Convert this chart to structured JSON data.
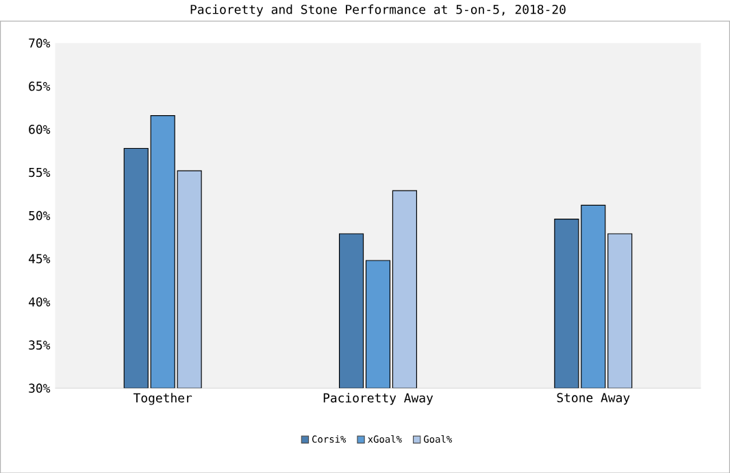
{
  "chart_data": {
    "type": "bar",
    "title": "Pacioretty and Stone Performance at 5-on-5, 2018-20",
    "categories": [
      "Together",
      "Pacioretty Away",
      "Stone Away"
    ],
    "series": [
      {
        "name": "Corsi%",
        "color": "#4a7eb0",
        "values": [
          57.8,
          47.9,
          49.6
        ]
      },
      {
        "name": "xGoal%",
        "color": "#5b9bd5",
        "values": [
          61.6,
          44.8,
          51.2
        ]
      },
      {
        "name": "Goal%",
        "color": "#adc5e6",
        "values": [
          55.2,
          52.9,
          47.9
        ]
      }
    ],
    "ylim": [
      30,
      70
    ],
    "yticks": [
      {
        "value": 30,
        "label": "30%"
      },
      {
        "value": 35,
        "label": "35%"
      },
      {
        "value": 40,
        "label": "40%"
      },
      {
        "value": 45,
        "label": "45%"
      },
      {
        "value": 50,
        "label": "50%"
      },
      {
        "value": 55,
        "label": "55%"
      },
      {
        "value": 60,
        "label": "60%"
      },
      {
        "value": 65,
        "label": "65%"
      },
      {
        "value": 70,
        "label": "70%"
      }
    ],
    "grid": false,
    "legend": "bottom"
  }
}
